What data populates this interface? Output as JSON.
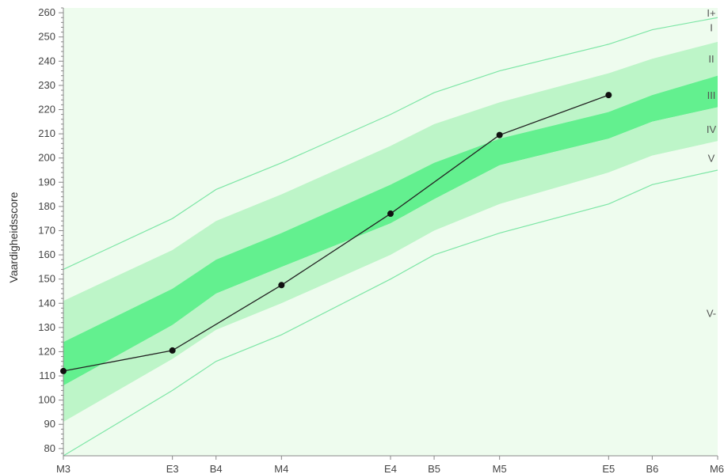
{
  "chart_data": {
    "type": "line",
    "title": "",
    "ylabel": "Vaardigheidsscore",
    "xlabel": "",
    "ylim": [
      77,
      262
    ],
    "y_ticks": [
      80,
      90,
      100,
      110,
      120,
      130,
      140,
      150,
      160,
      170,
      180,
      190,
      200,
      210,
      220,
      230,
      240,
      250,
      260
    ],
    "x_ticks": [
      {
        "label": "M3",
        "x": 0
      },
      {
        "label": "E3",
        "x": 1
      },
      {
        "label": "B4",
        "x": 1.4
      },
      {
        "label": "M4",
        "x": 2
      },
      {
        "label": "E4",
        "x": 3
      },
      {
        "label": "B5",
        "x": 3.4
      },
      {
        "label": "M5",
        "x": 4
      },
      {
        "label": "E5",
        "x": 5
      },
      {
        "label": "B6",
        "x": 5.4
      },
      {
        "label": "M6",
        "x": 6
      }
    ],
    "xlim": [
      0,
      6
    ],
    "grid": false,
    "series": [
      {
        "values": [
          {
            "x": 0,
            "y": 112
          },
          {
            "x": 1,
            "y": 120.5
          },
          {
            "x": 2,
            "y": 147.5
          },
          {
            "x": 3,
            "y": 177
          },
          {
            "x": 4,
            "y": 209.5
          },
          {
            "x": 5,
            "y": 226
          }
        ]
      }
    ],
    "bands": {
      "x": [
        0,
        1,
        1.4,
        2,
        3,
        3.4,
        4,
        5,
        5.4,
        6
      ],
      "boundaries": [
        [
          154,
          175,
          187,
          198,
          218,
          227,
          236,
          247,
          253,
          258
        ],
        [
          141,
          162,
          174,
          185,
          205,
          214,
          223,
          235,
          241,
          248
        ],
        [
          124,
          146,
          158,
          169,
          189,
          198,
          208,
          219,
          226,
          234
        ],
        [
          106,
          131,
          144,
          155,
          173,
          183,
          197,
          208,
          215,
          221
        ],
        [
          91,
          117,
          129,
          140,
          160,
          170,
          181,
          194,
          201,
          207
        ],
        [
          77,
          104,
          116,
          127,
          150,
          160,
          169,
          181,
          189,
          195
        ]
      ],
      "fills": [
        "#eefcee",
        "#bdf5c8",
        "#63f08f",
        "#bdf5c8",
        "#eefcee"
      ],
      "boundary_colors": [
        "#7ee6a6",
        null,
        null,
        null,
        null,
        "#7ee6a6"
      ],
      "background": "#eefcee"
    },
    "level_labels": [
      {
        "label": "I+",
        "y": 260
      },
      {
        "label": "I",
        "y": 254
      },
      {
        "label": "II",
        "y": 241
      },
      {
        "label": "III",
        "y": 226
      },
      {
        "label": "IV",
        "y": 212
      },
      {
        "label": "V",
        "y": 200
      },
      {
        "label": "V-",
        "y": 136
      }
    ],
    "colors": {
      "line": "#222222",
      "point": "#111111",
      "axis": "#888888"
    }
  }
}
